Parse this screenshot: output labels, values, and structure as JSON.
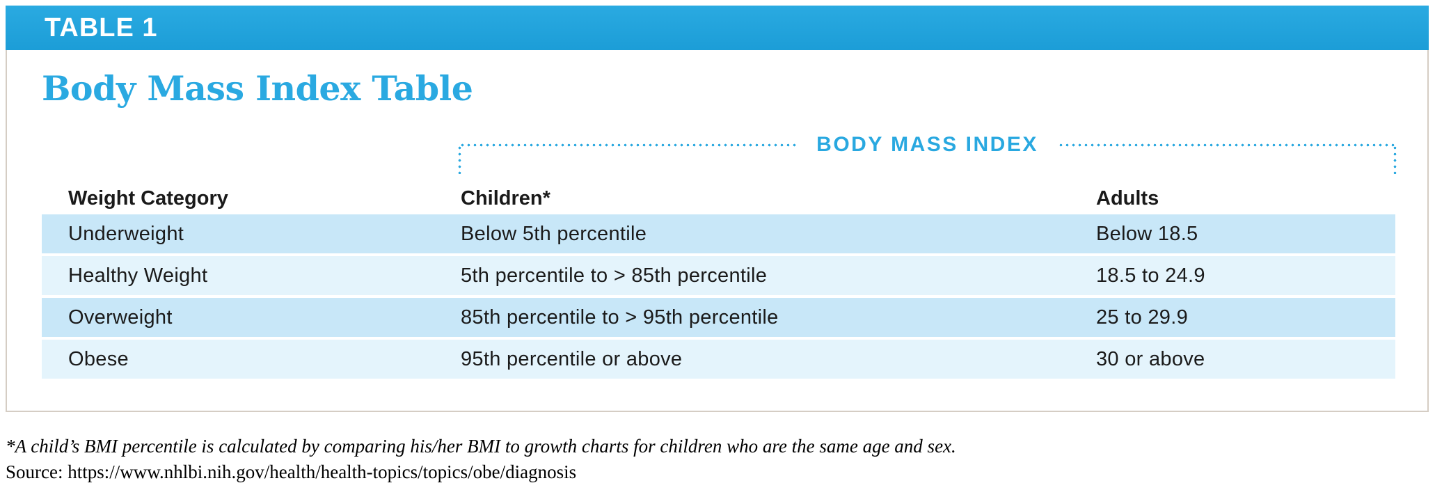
{
  "tag": "TABLE 1",
  "title": "Body Mass Index Table",
  "group_header": "BODY MASS INDEX",
  "table": {
    "columns": [
      "Weight Category",
      "Children*",
      "Adults"
    ],
    "rows": [
      {
        "category": "Underweight",
        "children": "Below 5th percentile",
        "adults": "Below 18.5"
      },
      {
        "category": "Healthy Weight",
        "children": "5th percentile to > 85th percentile",
        "adults": "18.5 to 24.9"
      },
      {
        "category": "Overweight",
        "children": "85th percentile to > 95th percentile",
        "adults": "25 to 29.9"
      },
      {
        "category": "Obese",
        "children": "95th percentile or above",
        "adults": "30 or above"
      }
    ]
  },
  "footnote": "*A child’s BMI percentile is calculated by comparing his/her BMI to growth charts for children who are the same age and sex.",
  "source": "Source: https://www.nhlbi.nih.gov/health/health-topics/topics/obe/diagnosis",
  "colors": {
    "bar_top": "#2aaae1",
    "bar_bottom": "#1c9dd7",
    "accent": "#29a8e0",
    "row_alt_dark": "#c8e7f8",
    "row_alt_light": "#e4f4fc",
    "card_border": "#d5cdc4",
    "title": "#2aa9e1",
    "text": "#1a1a1a"
  }
}
